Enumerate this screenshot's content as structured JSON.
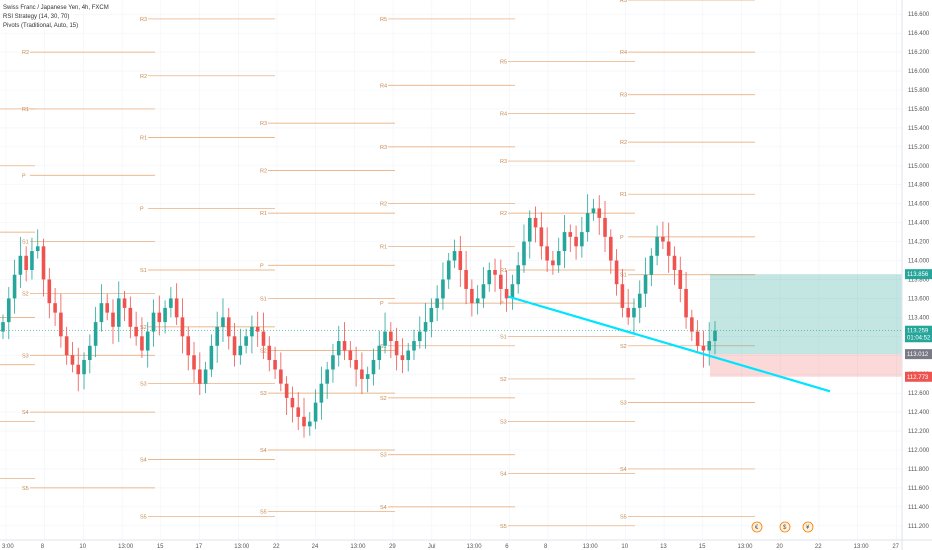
{
  "legend": {
    "title": "Swiss Franc / Japanese Yen, 4h, FXCM",
    "indicator1": "RSI Strategy (14, 30, 70)",
    "indicator2": "Pivots (Traditional, Auto, 15)"
  },
  "chart_data": {
    "type": "candlestick",
    "symbol": "CHFJPY",
    "interval": "4h",
    "y_axis": {
      "ticks": [
        "116.600",
        "116.400",
        "116.200",
        "116.000",
        "115.800",
        "115.600",
        "115.400",
        "115.200",
        "115.000",
        "114.800",
        "114.600",
        "114.400",
        "114.200",
        "114.000",
        "113.800",
        "113.600",
        "113.400",
        "113.200",
        "113.000",
        "112.800",
        "112.600",
        "112.400",
        "112.200",
        "112.000",
        "111.800",
        "111.600",
        "111.400",
        "111.200"
      ],
      "range": [
        111.05,
        116.75
      ]
    },
    "x_axis": {
      "ticks": [
        "3:00",
        "8",
        "10",
        "13:00",
        "15",
        "17",
        "13:00",
        "22",
        "24",
        "13:00",
        "29",
        "Jul",
        "13:00",
        "6",
        "8",
        "13:00",
        "10",
        "13",
        "15",
        "13:00",
        "20",
        "22",
        "13:00",
        "27"
      ]
    },
    "price_tags": [
      {
        "label": "113.856",
        "color": "#26a69a"
      },
      {
        "label": "113.259",
        "color": "#26a69a"
      },
      {
        "label": "01:04:52",
        "color": "#26a69a"
      },
      {
        "label": "113.012",
        "color": "#787b86"
      },
      {
        "label": "112.773",
        "color": "#ef5350"
      }
    ],
    "position": {
      "entry": 113.012,
      "target": 113.856,
      "stop": 112.773,
      "profit_color": "#26a69a",
      "loss_color": "#ef5350"
    },
    "trendline": {
      "from": [
        113.62,
        "Jul 6"
      ],
      "to": [
        112.62,
        "Jul 24"
      ],
      "color": "#00e5ff"
    },
    "pivot_labels": [
      "R5",
      "R4",
      "R3",
      "R2",
      "R1",
      "P",
      "S1",
      "S2",
      "S3",
      "S4",
      "S5"
    ],
    "candle_colors": {
      "up": "#26a69a",
      "down": "#ef5350"
    },
    "series": [
      {
        "name": "close",
        "values": [
          113.35,
          113.6,
          113.85,
          114.05,
          113.9,
          114.1,
          114.15,
          113.8,
          113.55,
          113.45,
          113.2,
          113.0,
          112.9,
          112.8,
          112.95,
          113.1,
          113.35,
          113.55,
          113.45,
          113.3,
          113.6,
          113.5,
          113.3,
          113.2,
          113.05,
          113.25,
          113.45,
          113.35,
          113.5,
          113.6,
          113.4,
          113.2,
          113.0,
          112.85,
          112.7,
          112.85,
          113.1,
          113.3,
          113.4,
          113.2,
          113.0,
          113.1,
          113.2,
          113.3,
          113.25,
          113.1,
          112.95,
          112.85,
          112.7,
          112.55,
          112.45,
          112.35,
          112.25,
          112.3,
          112.5,
          112.7,
          112.85,
          113.0,
          113.15,
          113.05,
          112.95,
          112.85,
          112.75,
          112.8,
          112.95,
          113.1,
          113.25,
          113.15,
          113.0,
          112.95,
          113.05,
          113.15,
          113.25,
          113.35,
          113.5,
          113.6,
          113.8,
          114.0,
          114.1,
          113.9,
          113.7,
          113.55,
          113.6,
          113.75,
          113.9,
          113.85,
          113.7,
          113.6,
          113.75,
          113.95,
          114.2,
          114.45,
          114.35,
          114.15,
          114.0,
          113.95,
          114.1,
          114.3,
          114.25,
          114.15,
          114.3,
          114.5,
          114.55,
          114.45,
          114.25,
          114.0,
          113.75,
          113.5,
          113.4,
          113.5,
          113.65,
          113.85,
          114.05,
          114.25,
          114.2,
          114.05,
          113.9,
          113.7,
          113.4,
          113.25,
          113.1,
          113.05,
          113.15,
          113.26
        ]
      }
    ],
    "currency_events": [
      "€",
      "$",
      "¥"
    ]
  }
}
